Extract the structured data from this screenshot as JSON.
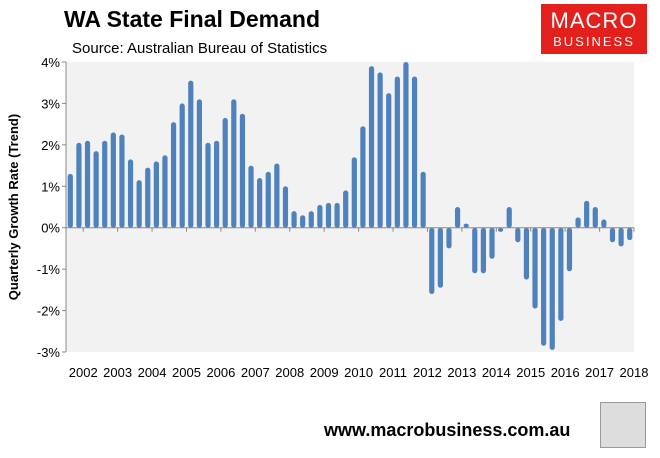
{
  "header": {
    "title": "WA State Final Demand",
    "source": "Source: Australian Bureau of Statistics"
  },
  "logo": {
    "line1": "MACRO",
    "line2": "BUSINESS",
    "color": "#e3201b"
  },
  "footer": {
    "url": "www.macrobusiness.com.au"
  },
  "chart_data": {
    "type": "bar",
    "title": "WA State Final Demand",
    "xlabel": "",
    "ylabel": "Quarterly Growth Rate (Trend)",
    "ylim": [
      -3,
      4
    ],
    "yticks": [
      "-3%",
      "-2%",
      "-1%",
      "0%",
      "1%",
      "2%",
      "3%",
      "4%"
    ],
    "xticks": [
      "2002",
      "2003",
      "2004",
      "2005",
      "2006",
      "2007",
      "2008",
      "2009",
      "2010",
      "2011",
      "2012",
      "2013",
      "2014",
      "2015",
      "2016",
      "2017",
      "2018"
    ],
    "bar_color": "#4f81bd",
    "grid": false,
    "values": [
      1.3,
      2.05,
      2.1,
      1.85,
      2.1,
      2.3,
      2.25,
      1.65,
      1.15,
      1.45,
      1.6,
      1.75,
      2.55,
      3.0,
      3.55,
      3.1,
      2.05,
      2.1,
      2.65,
      3.1,
      2.75,
      1.5,
      1.2,
      1.35,
      1.55,
      1.0,
      0.4,
      0.3,
      0.4,
      0.55,
      0.6,
      0.6,
      0.9,
      1.7,
      2.45,
      3.9,
      3.75,
      3.25,
      3.65,
      4.0,
      3.65,
      1.35,
      -1.6,
      -1.45,
      -0.5,
      0.5,
      0.1,
      -1.1,
      -1.1,
      -0.75,
      -0.1,
      0.5,
      -0.35,
      -1.25,
      -1.95,
      -2.85,
      -2.95,
      -2.25,
      -1.05,
      0.25,
      0.65,
      0.5,
      0.2,
      -0.35,
      -0.45,
      -0.3
    ]
  }
}
